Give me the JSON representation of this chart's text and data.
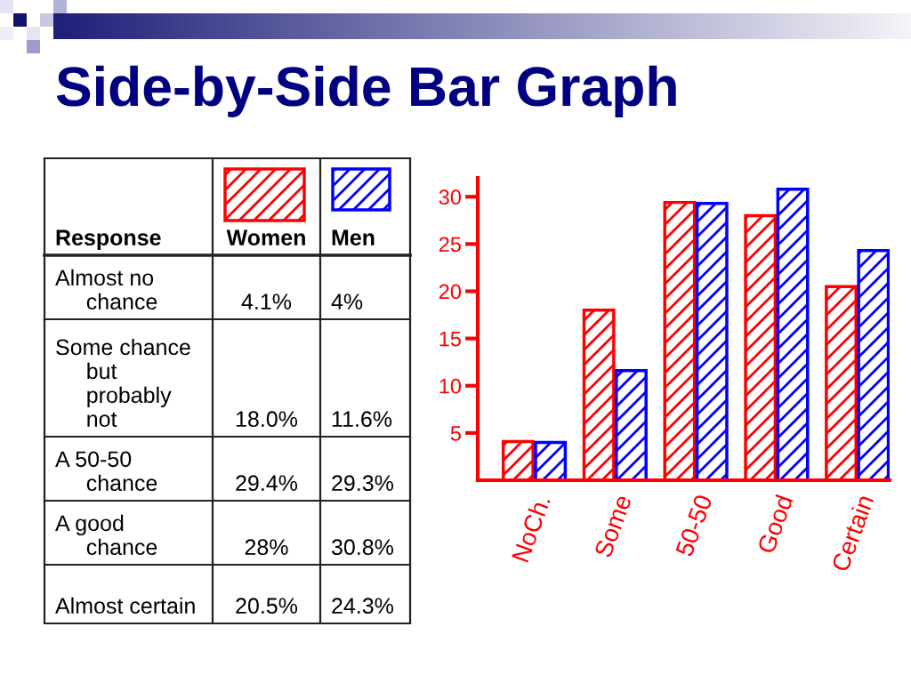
{
  "chart_data": [
    {
      "type": "bar",
      "title": "Side-by-Side Bar Graph",
      "categories": [
        "NoCh.",
        "Some",
        "50-50",
        "Good",
        "Certain"
      ],
      "series": [
        {
          "name": "Women",
          "color": "#ff0000",
          "values": [
            4.1,
            18.0,
            29.4,
            28,
            20.5
          ]
        },
        {
          "name": "Men",
          "color": "#0000ff",
          "values": [
            4,
            11.6,
            29.3,
            30.8,
            24.3
          ]
        }
      ],
      "ylim": [
        0,
        32
      ],
      "yticks": [
        5,
        10,
        15,
        20,
        25,
        30
      ],
      "legend": "left"
    },
    {
      "type": "other",
      "annotations": [
        "Response",
        "Almost no chance",
        "4.1%",
        "4%",
        "Some chance but probably not",
        "18.0%",
        "11.6%",
        "A 50-50 chance",
        "29.4%",
        "29.3%",
        "A good chance",
        "28%",
        "30.8%",
        "Almost certain",
        "20.5%",
        "24.3%"
      ]
    }
  ]
}
